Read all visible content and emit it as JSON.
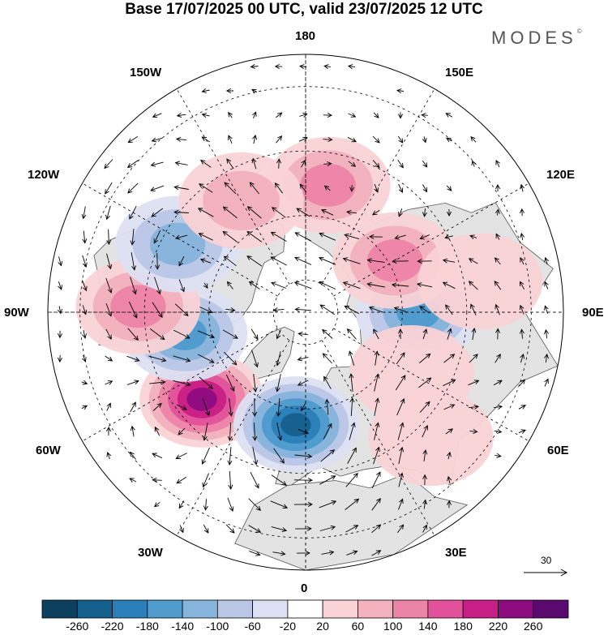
{
  "title": "Base 17/07/2025 00 UTC, valid 23/07/2025 12 UTC",
  "logo": {
    "text": "MODES",
    "mark": "©"
  },
  "longitude_labels": {
    "top": "180",
    "bottom": "0",
    "left": "90W",
    "right": "90E",
    "upper_left_1": "150W",
    "upper_left_2": "120W",
    "upper_right_1": "150E",
    "upper_right_2": "120E",
    "lower_left_1": "60W",
    "lower_left_2": "30W",
    "lower_right_1": "60E",
    "lower_right_2": "30E"
  },
  "reference_vector": {
    "label": "30"
  },
  "colorbar": {
    "ticks": [
      "-260",
      "-220",
      "-180",
      "-140",
      "-100",
      "-60",
      "-20",
      "20",
      "60",
      "100",
      "140",
      "180",
      "220",
      "260"
    ],
    "colors": [
      "#0d3f5e",
      "#155f8c",
      "#2a7fb8",
      "#4e9bcc",
      "#86b4dc",
      "#b9c6e6",
      "#dde0f2",
      "#ffffff",
      "#f9d3d6",
      "#f2b1bd",
      "#ec84a7",
      "#e2529a",
      "#c81f86",
      "#8c0c80",
      "#5a0a6e"
    ]
  },
  "colors": {
    "land_fill": "#e3e3e3",
    "coast": "#555555",
    "grid": "#000000"
  },
  "anomalies": [
    {
      "lon": -50,
      "lat": 48,
      "value": 260
    },
    {
      "lon": -5,
      "lat": 55,
      "value": -240
    },
    {
      "lon": -80,
      "lat": 52,
      "value": -170
    },
    {
      "lon": 90,
      "lat": 55,
      "value": -150
    },
    {
      "lon": 120,
      "lat": 58,
      "value": 140
    },
    {
      "lon": 170,
      "lat": 50,
      "value": 110
    },
    {
      "lon": -92,
      "lat": 38,
      "value": 110
    },
    {
      "lon": -118,
      "lat": 45,
      "value": -130
    },
    {
      "lon": -150,
      "lat": 50,
      "value": 70
    },
    {
      "lon": 60,
      "lat": 52,
      "value": 60
    },
    {
      "lon": 45,
      "lat": 35,
      "value": 60
    },
    {
      "lon": 100,
      "lat": 35,
      "value": 50
    }
  ]
}
